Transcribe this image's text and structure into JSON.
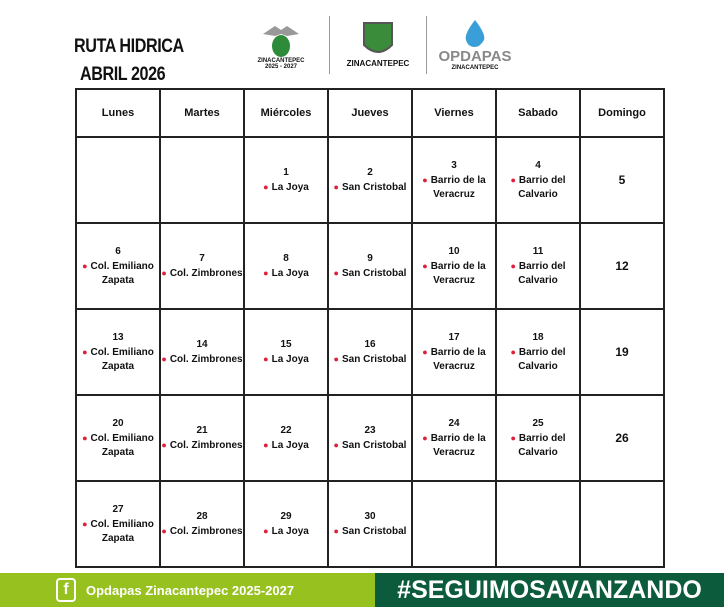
{
  "title": "RUTA HIDRICA",
  "subtitle": "ABRIL 2026",
  "logos": {
    "ayuntamiento": "ZINACANTEPEC",
    "ayuntamiento_years": "2025 - 2027",
    "gobierno": "ZINACANTEPEC",
    "opdapas": "OPDAPAS",
    "opdapas_sub": "ZINACANTEPEC"
  },
  "days": [
    "Lunes",
    "Martes",
    "Miércoles",
    "Jueves",
    "Viernes",
    "Sabado",
    "Domingo"
  ],
  "weeks": [
    [
      {},
      {},
      {
        "day": "1",
        "place": "La Joya"
      },
      {
        "day": "2",
        "place": "San Cristobal"
      },
      {
        "day": "3",
        "place": "Barrio de la Veracruz"
      },
      {
        "day": "4",
        "place": "Barrio del Calvario"
      },
      {
        "day": "5"
      }
    ],
    [
      {
        "day": "6",
        "place": "Col. Emiliano Zapata"
      },
      {
        "day": "7",
        "place": "Col. Zimbrones"
      },
      {
        "day": "8",
        "place": "La Joya"
      },
      {
        "day": "9",
        "place": "San Cristobal"
      },
      {
        "day": "10",
        "place": "Barrio de la Veracruz"
      },
      {
        "day": "11",
        "place": "Barrio del Calvario"
      },
      {
        "day": "12"
      }
    ],
    [
      {
        "day": "13",
        "place": "Col. Emiliano Zapata"
      },
      {
        "day": "14",
        "place": "Col. Zimbrones"
      },
      {
        "day": "15",
        "place": "La Joya"
      },
      {
        "day": "16",
        "place": "San Cristobal"
      },
      {
        "day": "17",
        "place": "Barrio de la Veracruz"
      },
      {
        "day": "18",
        "place": "Barrio del Calvario"
      },
      {
        "day": "19"
      }
    ],
    [
      {
        "day": "20",
        "place": "Col. Emiliano Zapata"
      },
      {
        "day": "21",
        "place": "Col. Zimbrones"
      },
      {
        "day": "22",
        "place": "La Joya"
      },
      {
        "day": "23",
        "place": "San Cristobal"
      },
      {
        "day": "24",
        "place": "Barrio de la Veracruz"
      },
      {
        "day": "25",
        "place": "Barrio del Calvario"
      },
      {
        "day": "26"
      }
    ],
    [
      {
        "day": "27",
        "place": "Col. Emiliano Zapata"
      },
      {
        "day": "28",
        "place": "Col. Zimbrones"
      },
      {
        "day": "29",
        "place": "La Joya"
      },
      {
        "day": "30",
        "place": "San Cristobal"
      },
      {},
      {},
      {}
    ]
  ],
  "footer": {
    "facebook": "Opdapas Zinacantepec 2025-2027",
    "hashtag": "#SEGUIMOSAVANZANDO"
  },
  "colors": {
    "pin": "#e0203a",
    "footer_left": "#97c11f",
    "footer_right": "#0c5b3d"
  }
}
